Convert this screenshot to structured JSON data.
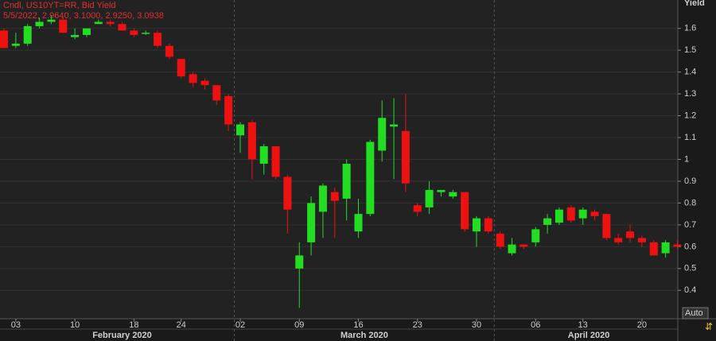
{
  "chart_data": {
    "type": "candlestick",
    "title": "Cndl, US10YT=RR, Bid Yield",
    "subtitle": "5/5/2022, 2.9640, 3.1000, 2.9250, 3.0938",
    "y_axis_label": "Yield",
    "button": "Auto",
    "months": [
      "February 2020",
      "March 2020",
      "April 2020"
    ],
    "categories": [
      null,
      "03",
      null,
      null,
      null,
      null,
      "10",
      null,
      null,
      null,
      null,
      "18",
      null,
      null,
      null,
      "24",
      null,
      null,
      null,
      null,
      "02",
      null,
      null,
      null,
      null,
      "09",
      null,
      null,
      null,
      null,
      "16",
      null,
      null,
      null,
      null,
      "23",
      null,
      null,
      null,
      null,
      "30",
      null,
      null,
      null,
      null,
      "06",
      null,
      null,
      null,
      "13",
      null,
      null,
      null,
      null,
      "20",
      null,
      null,
      null
    ],
    "open": [
      1.59,
      1.52,
      1.53,
      1.61,
      1.63,
      1.64,
      1.56,
      1.57,
      1.62,
      1.63,
      1.62,
      1.59,
      1.58,
      1.58,
      1.52,
      1.46,
      1.39,
      1.36,
      1.34,
      1.29,
      1.11,
      1.17,
      0.98,
      1.06,
      0.92,
      0.5,
      0.62,
      0.76,
      0.85,
      0.82,
      0.67,
      0.75,
      1.04,
      1.15,
      1.13,
      0.79,
      0.78,
      0.85,
      0.83,
      0.85,
      0.67,
      0.73,
      0.66,
      0.57,
      0.61,
      0.62,
      0.7,
      0.71,
      0.78,
      0.73,
      0.76,
      0.75,
      0.64,
      0.67,
      0.64,
      0.62,
      0.57,
      0.61
    ],
    "high": [
      1.6,
      1.58,
      1.62,
      1.65,
      1.66,
      1.65,
      1.6,
      1.6,
      1.64,
      1.64,
      1.63,
      1.6,
      1.59,
      1.59,
      1.53,
      1.46,
      1.4,
      1.37,
      1.34,
      1.3,
      1.17,
      1.18,
      1.07,
      1.06,
      0.93,
      0.62,
      0.83,
      0.89,
      0.87,
      1.0,
      0.82,
      1.09,
      1.27,
      1.28,
      1.3,
      0.8,
      0.9,
      0.86,
      0.86,
      0.85,
      0.74,
      0.74,
      0.67,
      0.64,
      0.61,
      0.69,
      0.75,
      0.78,
      0.79,
      0.78,
      0.77,
      0.75,
      0.66,
      0.7,
      0.65,
      0.63,
      0.63,
      0.63
    ],
    "low": [
      1.51,
      1.51,
      1.52,
      1.6,
      1.62,
      1.58,
      1.55,
      1.56,
      1.62,
      1.61,
      1.59,
      1.56,
      1.57,
      1.51,
      1.46,
      1.37,
      1.33,
      1.32,
      1.25,
      1.13,
      1.03,
      0.91,
      0.93,
      0.91,
      0.66,
      0.32,
      0.56,
      0.64,
      0.64,
      0.72,
      0.64,
      0.74,
      0.99,
      0.91,
      0.85,
      0.74,
      0.75,
      0.83,
      0.82,
      0.67,
      0.6,
      0.66,
      0.59,
      0.56,
      0.59,
      0.6,
      0.66,
      0.7,
      0.71,
      0.7,
      0.72,
      0.63,
      0.61,
      0.62,
      0.6,
      0.56,
      0.55,
      0.59
    ],
    "close": [
      1.51,
      1.53,
      1.61,
      1.63,
      1.64,
      1.58,
      1.57,
      1.6,
      1.63,
      1.62,
      1.59,
      1.57,
      1.58,
      1.52,
      1.47,
      1.38,
      1.35,
      1.34,
      1.27,
      1.16,
      1.16,
      1.0,
      1.06,
      0.92,
      0.77,
      0.56,
      0.8,
      0.88,
      0.81,
      0.98,
      0.75,
      1.08,
      1.19,
      1.16,
      0.89,
      0.76,
      0.86,
      0.86,
      0.85,
      0.68,
      0.73,
      0.67,
      0.6,
      0.61,
      0.6,
      0.68,
      0.73,
      0.77,
      0.72,
      0.77,
      0.74,
      0.64,
      0.62,
      0.64,
      0.62,
      0.56,
      0.62,
      0.6
    ],
    "up_color": "#22dd22",
    "down_color": "#ee1111",
    "ylim": [
      0.27,
      1.73
    ],
    "yticks": [
      0.4,
      0.5,
      0.6,
      0.7,
      0.8,
      0.9,
      1,
      1.1,
      1.2,
      1.3,
      1.4,
      1.5,
      1.6
    ],
    "grid": true
  }
}
